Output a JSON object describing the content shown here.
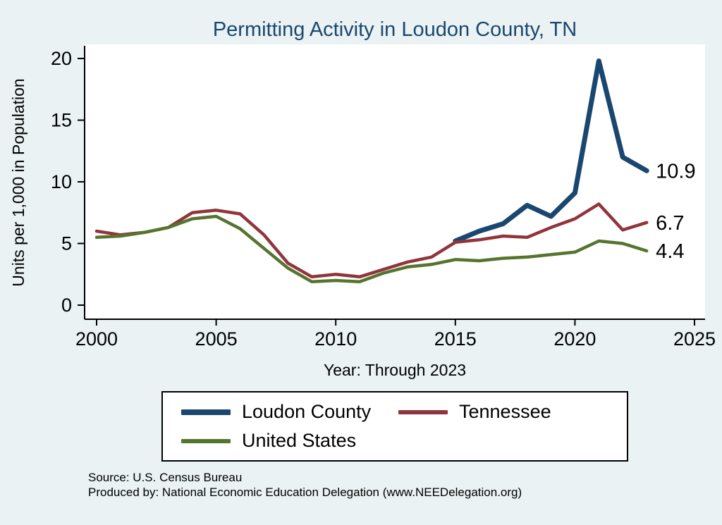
{
  "title": "Permitting Activity in Loudon County, TN",
  "footer": {
    "source": "Source: U.S. Census Bureau",
    "produced_by": "Produced by: National Economic Education Delegation (www.NEEDelegation.org)"
  },
  "colors": {
    "background": "#EAF2F3",
    "plot_background": "#FFFFFF",
    "title": "#1A476F",
    "axis": "#000000"
  },
  "chart_data": {
    "type": "line",
    "title": "Permitting Activity in Loudon County, TN",
    "xlabel": "Year: Through 2023",
    "ylabel": "Units per 1,000 in Population",
    "xlim": [
      2000,
      2025
    ],
    "ylim": [
      0,
      20
    ],
    "x_ticks": [
      2000,
      2005,
      2010,
      2015,
      2020,
      2025
    ],
    "y_ticks": [
      0,
      5,
      10,
      15,
      20
    ],
    "grid": false,
    "legend_position": "bottom",
    "series": [
      {
        "name": "Loudon County",
        "color": "#1A476F",
        "line_width": 7,
        "end_label": "10.9",
        "x": [
          2015,
          2016,
          2017,
          2018,
          2019,
          2020,
          2021,
          2022,
          2023
        ],
        "values": [
          5.2,
          6.0,
          6.6,
          8.1,
          7.2,
          9.1,
          19.8,
          12.0,
          10.9
        ]
      },
      {
        "name": "Tennessee",
        "color": "#90353B",
        "line_width": 4.5,
        "end_label": "6.7",
        "x": [
          2000,
          2001,
          2002,
          2003,
          2004,
          2005,
          2006,
          2007,
          2008,
          2009,
          2010,
          2011,
          2012,
          2013,
          2014,
          2015,
          2016,
          2017,
          2018,
          2019,
          2020,
          2021,
          2022,
          2023
        ],
        "values": [
          6.0,
          5.7,
          5.9,
          6.3,
          7.5,
          7.7,
          7.4,
          5.7,
          3.4,
          2.3,
          2.5,
          2.3,
          2.9,
          3.5,
          3.9,
          5.1,
          5.3,
          5.6,
          5.5,
          6.3,
          7.0,
          8.2,
          6.1,
          6.7
        ]
      },
      {
        "name": "United States",
        "color": "#55752F",
        "line_width": 4.5,
        "end_label": "4.4",
        "x": [
          2000,
          2001,
          2002,
          2003,
          2004,
          2005,
          2006,
          2007,
          2008,
          2009,
          2010,
          2011,
          2012,
          2013,
          2014,
          2015,
          2016,
          2017,
          2018,
          2019,
          2020,
          2021,
          2022,
          2023
        ],
        "values": [
          5.5,
          5.6,
          5.9,
          6.3,
          7.0,
          7.2,
          6.2,
          4.6,
          3.0,
          1.9,
          2.0,
          1.9,
          2.6,
          3.1,
          3.3,
          3.7,
          3.6,
          3.8,
          3.9,
          4.1,
          4.3,
          5.2,
          5.0,
          4.4
        ]
      }
    ]
  }
}
